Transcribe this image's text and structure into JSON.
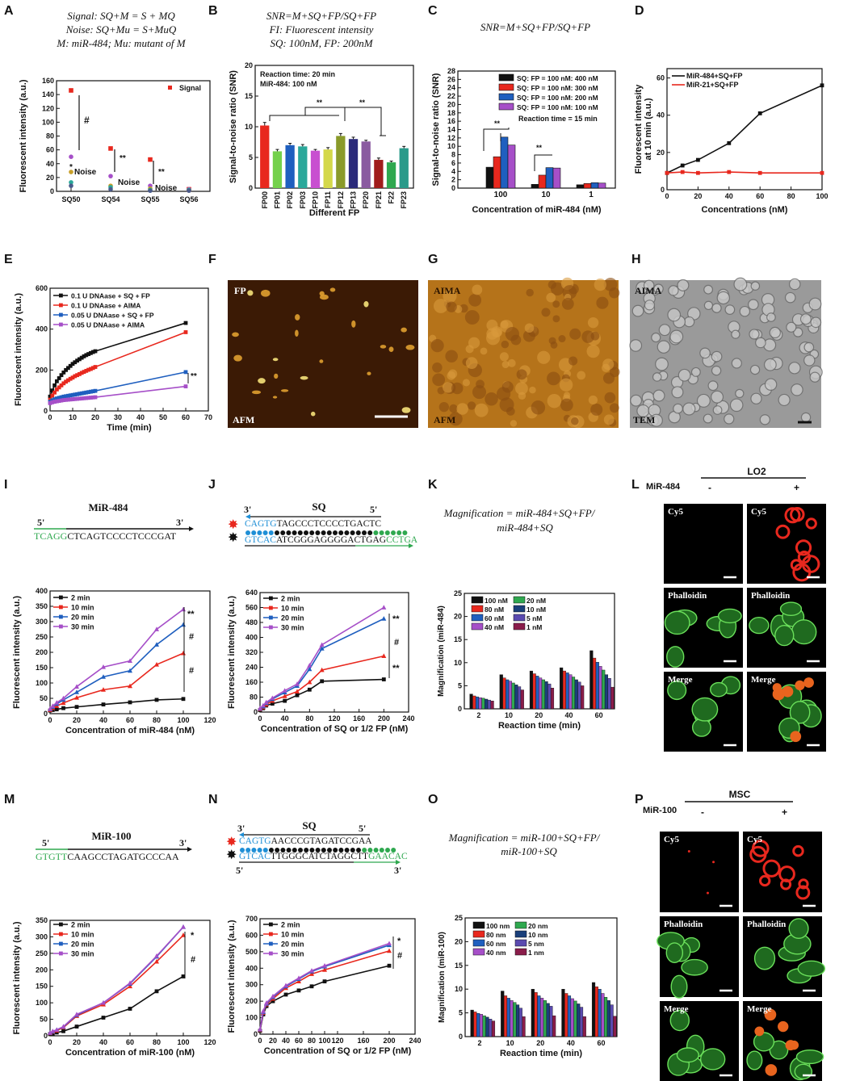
{
  "colors": {
    "black": "#111111",
    "red": "#e8281e",
    "blue": "#1f5fbf",
    "purple": "#a64fc8",
    "green": "#2fa84f",
    "ltgreen": "#74d14c",
    "olive": "#8a9a2a",
    "teal": "#2aa89a",
    "gold": "#c8a02a",
    "maroon": "#8a1c1c",
    "navy": "#1a3f7a",
    "darkred": "#a02020",
    "slate": "#4a5a8a",
    "gray": "#7f7f7f"
  },
  "panel_letters": [
    "A",
    "B",
    "C",
    "D",
    "E",
    "F",
    "G",
    "H",
    "I",
    "J",
    "K",
    "L",
    "M",
    "N",
    "O",
    "P"
  ],
  "panelA": {
    "f1": "Signal:  SQ+M = S + MQ",
    "f2": "Noise:  SQ+Mu = S+MuQ",
    "f3": "M:  miR-484; Mu: mutant of M",
    "sig": "#",
    "noise1": "Noise",
    "noise2": "Noise",
    "noise3": "Noise",
    "sig1": "**",
    "sig2": "**",
    "star": "*"
  },
  "panelB": {
    "f1": "SNR=M+SQ+FP/SQ+FP",
    "f2": "FI: Fluorescent intensity",
    "f3": "SQ: 100nM, FP: 200nM",
    "note1": "Reaction time: 20 min",
    "note2": "MiR-484: 100 nM",
    "s1": "**",
    "s2": "**"
  },
  "panelC": {
    "f1": "SNR=M+SQ+FP/SQ+FP",
    "note": "Reaction time = 15 min",
    "s1": "**",
    "s2": "**"
  },
  "panelE": {
    "sig": "**"
  },
  "panelF": {
    "tl": "FP",
    "bl": "AFM"
  },
  "panelG": {
    "tl": "AIMA",
    "bl": "AFM"
  },
  "panelH": {
    "tl": "AIMA",
    "bl": "TEM"
  },
  "panelI": {
    "name": "MiR-484",
    "p5": "5'",
    "p3": "3'",
    "seq_a": "TCAGG",
    "seq_b": "CTCAGTCCCCTCCCGAT",
    "s1": "**",
    "s2": "#",
    "s3": "#"
  },
  "panelJ": {
    "name": "SQ",
    "p3": "3'",
    "p5": "5'",
    "top_a": "CAGTG",
    "top_b": "TAGCCCTCCCCTGACTC",
    "bot_a": "GTCAC",
    "bot_b": "ATCGGGAGGGGACTGAG",
    "bot_c": "CCTGA",
    "s1": "**",
    "s2": "#",
    "s3": "**"
  },
  "panelK": {
    "f1": "Magnification = miR-484+SQ+FP/",
    "f2": "miR-484+SQ"
  },
  "panelL": {
    "group": "LO2",
    "mir": "MiR-484",
    "minus": "-",
    "plus": "+",
    "row1": "Cy5",
    "row2": "Phalloidin",
    "row3": "Merge"
  },
  "panelM": {
    "name": "MiR-100",
    "p5": "5'",
    "p3": "3'",
    "seq_a": "GTGTT",
    "seq_b": "CAAGCCTAGATGCCCAA",
    "s1": "*",
    "s2": "#"
  },
  "panelN": {
    "name": "SQ",
    "p3": "3'",
    "p5": "5'",
    "top_a": "CAGTG",
    "top_b": "AACCCGTAGATCCGAA",
    "bot_a": "GTCAC",
    "bot_b": "TTGGGCATCTAGGCTT",
    "bot_c": "GAACAC",
    "b5": "5'",
    "b3": "3'",
    "s1": "*",
    "s2": "#"
  },
  "panelO": {
    "f1": "Magnification = miR-100+SQ+FP/",
    "f2": "miR-100+SQ"
  },
  "panelP": {
    "group": "MSC",
    "mir": "MiR-100",
    "minus": "-",
    "plus": "+",
    "row1": "Cy5",
    "row2": "Phalloidin",
    "row3": "Merge"
  },
  "chart_data": [
    {
      "id": "A",
      "type": "scatter",
      "ylabel": "Fluorescent intensity (a.u.)",
      "categories": [
        "SQ50",
        "SQ54",
        "SQ55",
        "SQ56"
      ],
      "ylim": [
        0,
        160
      ],
      "yticks": [
        0,
        20,
        40,
        60,
        80,
        100,
        120,
        140,
        160
      ],
      "legend": "Signal",
      "signal": [
        146,
        62,
        46,
        3
      ],
      "noise": [
        [
          50,
          28,
          13,
          8
        ],
        [
          22,
          8,
          6,
          3
        ],
        [
          8,
          4,
          2,
          1
        ],
        [
          3,
          2,
          2,
          1
        ]
      ]
    },
    {
      "id": "B",
      "type": "bar",
      "ylabel": "Signal-to-noise ratio (SNR)",
      "xlabel": "Different FP",
      "ylim": [
        0,
        20
      ],
      "yticks": [
        0,
        5,
        10,
        15,
        20
      ],
      "categories": [
        "FP00",
        "FP01",
        "FP02",
        "FP03",
        "FP10",
        "FP11",
        "FP12",
        "FP13",
        "FP20",
        "FP21",
        "F22",
        "FP23"
      ],
      "values": [
        10.2,
        6.0,
        7.0,
        6.8,
        6.1,
        6.3,
        8.5,
        8.0,
        7.6,
        4.6,
        4.2,
        6.5
      ],
      "errors": [
        0.5,
        0.3,
        0.3,
        0.3,
        0.2,
        0.3,
        0.4,
        0.3,
        0.2,
        0.3,
        0.2,
        0.3
      ]
    },
    {
      "id": "C",
      "type": "bar",
      "ylabel": "Signal-to-noise ratio (SNR)",
      "xlabel": "Concentration of miR-484 (nM)",
      "ylim": [
        0,
        28
      ],
      "yticks": [
        0,
        2,
        4,
        6,
        8,
        10,
        12,
        14,
        16,
        18,
        20,
        22,
        24,
        26,
        28
      ],
      "categories": [
        "100",
        "10",
        "1"
      ],
      "series": [
        {
          "name": "SQ: FP = 100 nM: 400 nM",
          "values": [
            5.0,
            0.9,
            0.8
          ]
        },
        {
          "name": "SQ: FP = 100 nM: 300 nM",
          "values": [
            7.5,
            3.1,
            1.1
          ]
        },
        {
          "name": "SQ: FP = 100 nM: 200 nM",
          "values": [
            12.2,
            4.9,
            1.3
          ]
        },
        {
          "name": "SQ: FP = 100 nM: 100 nM",
          "values": [
            10.3,
            4.8,
            1.2
          ]
        }
      ]
    },
    {
      "id": "D",
      "type": "line",
      "ylabel": "Fluorescent intensity at 10 min (a.u.)",
      "xlabel": "Concentrations (nM)",
      "xlim": [
        0,
        100
      ],
      "ylim": [
        0,
        65
      ],
      "xticks": [
        0,
        20,
        40,
        60,
        80,
        100
      ],
      "yticks": [
        0,
        20,
        40,
        60
      ],
      "x": [
        0,
        10,
        20,
        40,
        60,
        100
      ],
      "series": [
        {
          "name": "MiR-484+SQ+FP",
          "values": [
            9,
            13,
            16,
            25,
            41,
            56
          ]
        },
        {
          "name": "MiR-21+SQ+FP",
          "values": [
            9,
            9.5,
            9,
            9.5,
            9,
            9
          ]
        }
      ]
    },
    {
      "id": "E",
      "type": "line",
      "ylabel": "Fluorescent intensity (a.u.)",
      "xlabel": "Time (min)",
      "xlim": [
        0,
        70
      ],
      "ylim": [
        0,
        600
      ],
      "xticks": [
        0,
        10,
        20,
        30,
        40,
        50,
        60,
        70
      ],
      "yticks": [
        0,
        200,
        400,
        600
      ],
      "x": [
        0,
        1,
        2,
        3,
        4,
        5,
        6,
        7,
        8,
        9,
        10,
        11,
        12,
        13,
        14,
        15,
        16,
        17,
        18,
        19,
        20,
        60
      ],
      "series": [
        {
          "name": "0.1 U DNAase + SQ + FP",
          "values": [
            70,
            100,
            125,
            145,
            160,
            175,
            188,
            200,
            210,
            220,
            230,
            238,
            246,
            253,
            260,
            267,
            273,
            278,
            283,
            288,
            292,
            430
          ]
        },
        {
          "name": "0.1 U DNAase + AIMA",
          "values": [
            55,
            75,
            90,
            105,
            115,
            125,
            135,
            143,
            150,
            157,
            163,
            170,
            175,
            180,
            186,
            191,
            196,
            201,
            205,
            210,
            215,
            385
          ]
        },
        {
          "name": "0.05 U DNAase + SQ + FP",
          "values": [
            45,
            52,
            57,
            61,
            64,
            67,
            70,
            72,
            74,
            76,
            78,
            80,
            82,
            84,
            86,
            88,
            90,
            92,
            94,
            96,
            98,
            190
          ]
        },
        {
          "name": "0.05 U DNAase + AIMA",
          "values": [
            38,
            42,
            45,
            47,
            49,
            51,
            53,
            54,
            55,
            56,
            57,
            58,
            59,
            60,
            61,
            62,
            63,
            64,
            65,
            66,
            67,
            120
          ]
        }
      ]
    },
    {
      "id": "I",
      "type": "line",
      "ylabel": "Fluorescent intensity (a.u.)",
      "xlabel": "Concentration of miR-484 (nM)",
      "xlim": [
        0,
        120
      ],
      "ylim": [
        0,
        400
      ],
      "xticks": [
        0,
        20,
        40,
        60,
        80,
        100,
        120
      ],
      "yticks": [
        0,
        50,
        100,
        150,
        200,
        250,
        300,
        350,
        400
      ],
      "x": [
        0,
        2,
        5,
        10,
        20,
        40,
        60,
        80,
        100
      ],
      "series": [
        {
          "name": "2  min",
          "values": [
            10,
            12,
            14,
            18,
            22,
            30,
            37,
            45,
            48
          ]
        },
        {
          "name": "10 min",
          "values": [
            12,
            18,
            25,
            35,
            52,
            78,
            90,
            160,
            197
          ]
        },
        {
          "name": "20 min",
          "values": [
            15,
            22,
            32,
            45,
            70,
            120,
            140,
            225,
            290
          ]
        },
        {
          "name": "30 min",
          "values": [
            16,
            25,
            36,
            50,
            88,
            152,
            172,
            275,
            340
          ]
        }
      ]
    },
    {
      "id": "J",
      "type": "line",
      "ylabel": "Fluorescent intensity (a.u.)",
      "xlabel": "Concentration of SQ or 1/2 FP (nM)",
      "xlim": [
        0,
        240
      ],
      "ylim": [
        0,
        640
      ],
      "xticks": [
        0,
        40,
        80,
        120,
        160,
        200,
        240
      ],
      "yticks": [
        0,
        80,
        160,
        240,
        320,
        400,
        480,
        560,
        640
      ],
      "x": [
        0,
        5,
        10,
        20,
        40,
        60,
        80,
        100,
        200
      ],
      "series": [
        {
          "name": "2  min",
          "values": [
            10,
            20,
            35,
            45,
            60,
            90,
            120,
            165,
            175
          ]
        },
        {
          "name": "10 min",
          "values": [
            15,
            25,
            40,
            60,
            85,
            110,
            160,
            225,
            300
          ]
        },
        {
          "name": "20 min",
          "values": [
            18,
            30,
            48,
            70,
            105,
            140,
            230,
            340,
            500
          ]
        },
        {
          "name": "30 min",
          "values": [
            20,
            35,
            52,
            75,
            115,
            150,
            250,
            360,
            560
          ]
        }
      ]
    },
    {
      "id": "K",
      "type": "bar",
      "ylabel": "Magnification (miR-484)",
      "xlabel": "Reaction time (min)",
      "ylim": [
        0,
        25
      ],
      "yticks": [
        0,
        5,
        10,
        15,
        20,
        25
      ],
      "categories": [
        "2",
        "10",
        "20",
        "40",
        "60"
      ],
      "series": [
        {
          "name": "100 nM",
          "values": [
            3.2,
            7.4,
            8.2,
            8.9,
            12.6
          ]
        },
        {
          "name": "80 nM",
          "values": [
            2.8,
            6.7,
            7.6,
            8.2,
            11.0
          ]
        },
        {
          "name": "60 nM",
          "values": [
            2.6,
            6.3,
            7.1,
            7.8,
            10.1
          ]
        },
        {
          "name": "40 nM",
          "values": [
            2.4,
            6.0,
            6.7,
            7.4,
            9.2
          ]
        },
        {
          "name": "20 nM",
          "values": [
            2.3,
            5.6,
            6.3,
            6.9,
            8.4
          ]
        },
        {
          "name": "10 nM",
          "values": [
            2.1,
            5.2,
            5.9,
            6.3,
            7.4
          ]
        },
        {
          "name": "5  nM",
          "values": [
            1.9,
            4.8,
            5.4,
            5.8,
            6.6
          ]
        },
        {
          "name": "1  nM",
          "values": [
            1.7,
            4.1,
            4.5,
            5.0,
            4.7
          ]
        }
      ]
    },
    {
      "id": "M",
      "type": "line",
      "ylabel": "Fluorescent intensity (a.u.)",
      "xlabel": "Concentration of miR-100 (nM)",
      "xlim": [
        0,
        120
      ],
      "ylim": [
        0,
        350
      ],
      "xticks": [
        0,
        20,
        40,
        60,
        80,
        100,
        120
      ],
      "yticks": [
        0,
        50,
        100,
        150,
        200,
        250,
        300,
        350
      ],
      "x": [
        0,
        2,
        5,
        10,
        20,
        40,
        60,
        80,
        100
      ],
      "series": [
        {
          "name": "2  min",
          "values": [
            5,
            7,
            10,
            14,
            28,
            55,
            82,
            135,
            180
          ]
        },
        {
          "name": "10 min",
          "values": [
            8,
            12,
            16,
            25,
            60,
            95,
            150,
            225,
            305
          ]
        },
        {
          "name": "20 min",
          "values": [
            9,
            13,
            18,
            27,
            63,
            100,
            158,
            240,
            330
          ]
        },
        {
          "name": "30 min",
          "values": [
            9,
            14,
            18,
            28,
            65,
            100,
            160,
            242,
            330
          ]
        }
      ]
    },
    {
      "id": "N",
      "type": "line",
      "ylabel": "Fluorescent intensity (a.u.)",
      "xlabel": "Concentration of SQ or 1/2 FP (nM)",
      "xlim": [
        0,
        240
      ],
      "ylim": [
        0,
        700
      ],
      "xticks": [
        0,
        20,
        40,
        60,
        80,
        100,
        120,
        160,
        200,
        240
      ],
      "yticks": [
        0,
        100,
        200,
        300,
        400,
        500,
        600,
        700
      ],
      "x": [
        0,
        5,
        10,
        20,
        40,
        60,
        80,
        100,
        200
      ],
      "series": [
        {
          "name": "2  min",
          "values": [
            20,
            120,
            170,
            200,
            240,
            265,
            290,
            320,
            415
          ]
        },
        {
          "name": "10 min",
          "values": [
            25,
            130,
            180,
            215,
            280,
            320,
            365,
            390,
            505
          ]
        },
        {
          "name": "20 min",
          "values": [
            28,
            135,
            185,
            225,
            290,
            335,
            380,
            410,
            540
          ]
        },
        {
          "name": "30 min",
          "values": [
            30,
            140,
            190,
            230,
            295,
            340,
            385,
            415,
            550
          ]
        }
      ]
    },
    {
      "id": "O",
      "type": "bar",
      "ylabel": "Magnification (miR-100)",
      "xlabel": "Reaction time (min)",
      "ylim": [
        0,
        25
      ],
      "yticks": [
        0,
        5,
        10,
        15,
        20,
        25
      ],
      "categories": [
        "2",
        "10",
        "20",
        "40",
        "60"
      ],
      "series": [
        {
          "name": "100 nm",
          "values": [
            5.6,
            9.6,
            10.0,
            10.0,
            11.4
          ]
        },
        {
          "name": "80  nm",
          "values": [
            5.2,
            8.6,
            9.3,
            9.1,
            10.5
          ]
        },
        {
          "name": "60  nm",
          "values": [
            4.9,
            8.1,
            8.6,
            8.6,
            10.0
          ]
        },
        {
          "name": "40  nm",
          "values": [
            4.7,
            7.6,
            8.1,
            8.0,
            9.1
          ]
        },
        {
          "name": "20 nm",
          "values": [
            4.4,
            7.2,
            7.6,
            7.5,
            8.3
          ]
        },
        {
          "name": "10 nm",
          "values": [
            4.1,
            6.7,
            7.0,
            6.9,
            7.6
          ]
        },
        {
          "name": "5 nm",
          "values": [
            3.7,
            6.0,
            6.4,
            6.2,
            6.7
          ]
        },
        {
          "name": "1 nm",
          "values": [
            3.3,
            4.2,
            4.4,
            4.2,
            4.3
          ]
        }
      ]
    }
  ]
}
